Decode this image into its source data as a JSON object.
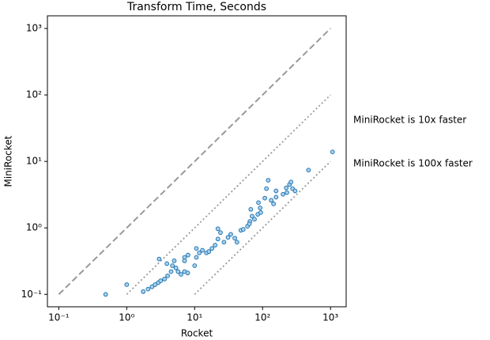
{
  "chart_data": {
    "type": "scatter",
    "title": "Transform Time, Seconds",
    "xlabel": "Rocket",
    "ylabel": "MiniRocket",
    "xscale": "log",
    "yscale": "log",
    "xlim": [
      0.068,
      1700
    ],
    "ylim": [
      0.065,
      1550
    ],
    "xticks": [
      {
        "value": 0.1,
        "label": "10⁻¹"
      },
      {
        "value": 1,
        "label": "10⁰"
      },
      {
        "value": 10,
        "label": "10¹"
      },
      {
        "value": 100,
        "label": "10²"
      },
      {
        "value": 1000,
        "label": "10³"
      }
    ],
    "yticks": [
      {
        "value": 0.1,
        "label": "10⁻¹"
      },
      {
        "value": 1,
        "label": "10⁰"
      },
      {
        "value": 10,
        "label": "10¹"
      },
      {
        "value": 100,
        "label": "10²"
      },
      {
        "value": 1000,
        "label": "10³"
      }
    ],
    "color": "#1f77b4",
    "reference_lines": [
      {
        "x": [
          0.1,
          1000
        ],
        "y": [
          0.1,
          1000
        ],
        "style": "dashed"
      },
      {
        "x": [
          1,
          1000
        ],
        "y": [
          0.1,
          100
        ],
        "style": "dotted"
      },
      {
        "x": [
          10,
          1000
        ],
        "y": [
          0.1,
          10
        ],
        "style": "dotted"
      }
    ],
    "annotations": [
      "MiniRocket is 10x faster",
      "MiniRocket is 100x faster"
    ],
    "x": [
      0.49,
      1.0,
      1.75,
      2.06,
      2.36,
      2.62,
      2.92,
      3.16,
      3.6,
      4.0,
      4.5,
      3.0,
      3.9,
      4.7,
      5.3,
      5.0,
      5.7,
      6.3,
      7.1,
      7.9,
      7.1,
      8.0,
      7.1,
      10.6,
      10,
      10.6,
      11.7,
      13.0,
      14.9,
      16.2,
      18,
      20,
      22,
      24,
      22,
      27,
      31,
      34,
      39,
      42,
      48,
      52,
      60,
      65,
      70,
      67,
      64,
      76,
      85,
      92,
      94,
      87,
      108,
      121,
      114,
      134,
      145,
      158,
      158,
      200,
      223,
      249,
      262,
      276,
      301,
      228,
      474,
      1070
    ],
    "y": [
      0.1,
      0.14,
      0.11,
      0.12,
      0.13,
      0.14,
      0.15,
      0.16,
      0.17,
      0.19,
      0.22,
      0.34,
      0.29,
      0.27,
      0.25,
      0.32,
      0.22,
      0.2,
      0.22,
      0.21,
      0.36,
      0.39,
      0.32,
      0.49,
      0.27,
      0.36,
      0.42,
      0.46,
      0.42,
      0.44,
      0.49,
      0.55,
      0.68,
      0.85,
      0.97,
      0.61,
      0.72,
      0.8,
      0.7,
      0.61,
      0.92,
      0.95,
      1.06,
      1.25,
      1.5,
      1.9,
      1.15,
      1.35,
      1.6,
      2.0,
      1.7,
      2.4,
      2.8,
      5.2,
      3.9,
      2.6,
      2.3,
      3.6,
      2.9,
      3.2,
      4.0,
      4.5,
      4.9,
      3.9,
      3.6,
      3.4,
      7.4,
      13.9
    ]
  }
}
